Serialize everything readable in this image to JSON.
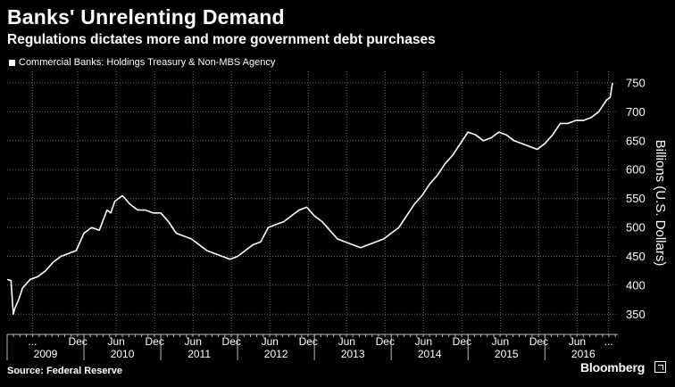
{
  "title": "Banks' Unrelenting Demand",
  "subtitle": "Regulations dictates more and more government debt purchases",
  "source": "Source: Federal Reserve",
  "brand": "Bloomberg",
  "colors": {
    "background": "#000000",
    "line": "#ffffff",
    "grid": "#6a6a6a"
  },
  "chart_data": {
    "type": "line",
    "legend": "top-left",
    "grid": true,
    "ylabel": "Billions (U.S. Dollars)",
    "ylim": [
      315,
      770
    ],
    "yticks": [
      350,
      400,
      450,
      500,
      550,
      600,
      650,
      700,
      750
    ],
    "xlim": [
      2009.0,
      2016.95
    ],
    "xticks": [
      {
        "x": 2009.33,
        "label": "..."
      },
      {
        "x": 2009.92,
        "label": "Dec"
      },
      {
        "x": 2010.42,
        "label": "Jun"
      },
      {
        "x": 2010.92,
        "label": "Dec"
      },
      {
        "x": 2011.42,
        "label": "Jun"
      },
      {
        "x": 2011.92,
        "label": "Dec"
      },
      {
        "x": 2012.42,
        "label": "Jun"
      },
      {
        "x": 2012.92,
        "label": "Dec"
      },
      {
        "x": 2013.42,
        "label": "Jun"
      },
      {
        "x": 2013.92,
        "label": "Dec"
      },
      {
        "x": 2014.42,
        "label": "Jun"
      },
      {
        "x": 2014.92,
        "label": "Dec"
      },
      {
        "x": 2015.42,
        "label": "Jun"
      },
      {
        "x": 2015.92,
        "label": "Dec"
      },
      {
        "x": 2016.42,
        "label": "Jun"
      },
      {
        "x": 2016.83,
        "label": "..."
      }
    ],
    "years": [
      {
        "x": 2009.5,
        "label": "2009"
      },
      {
        "x": 2010.5,
        "label": "2010"
      },
      {
        "x": 2011.5,
        "label": "2011"
      },
      {
        "x": 2012.5,
        "label": "2012"
      },
      {
        "x": 2013.5,
        "label": "2013"
      },
      {
        "x": 2014.5,
        "label": "2014"
      },
      {
        "x": 2015.5,
        "label": "2015"
      },
      {
        "x": 2016.5,
        "label": "2016"
      }
    ],
    "series": [
      {
        "name": "Commercial Banks: Holdings Treasury & Non-MBS Agency",
        "x": [
          2009.0,
          2009.05,
          2009.08,
          2009.1,
          2009.15,
          2009.2,
          2009.3,
          2009.4,
          2009.5,
          2009.6,
          2009.7,
          2009.8,
          2009.9,
          2010.0,
          2010.1,
          2010.2,
          2010.3,
          2010.35,
          2010.4,
          2010.5,
          2010.6,
          2010.7,
          2010.8,
          2010.9,
          2011.0,
          2011.1,
          2011.2,
          2011.3,
          2011.4,
          2011.5,
          2011.6,
          2011.7,
          2011.8,
          2011.9,
          2012.0,
          2012.1,
          2012.2,
          2012.3,
          2012.4,
          2012.5,
          2012.6,
          2012.7,
          2012.8,
          2012.9,
          2013.0,
          2013.1,
          2013.2,
          2013.3,
          2013.4,
          2013.5,
          2013.6,
          2013.7,
          2013.8,
          2013.9,
          2014.0,
          2014.1,
          2014.2,
          2014.3,
          2014.4,
          2014.5,
          2014.6,
          2014.7,
          2014.8,
          2014.9,
          2015.0,
          2015.1,
          2015.2,
          2015.3,
          2015.4,
          2015.5,
          2015.6,
          2015.7,
          2015.8,
          2015.9,
          2016.0,
          2016.1,
          2016.2,
          2016.3,
          2016.4,
          2016.5,
          2016.6,
          2016.7,
          2016.75,
          2016.8,
          2016.85,
          2016.88
        ],
        "values": [
          410,
          408,
          350,
          360,
          375,
          395,
          410,
          415,
          425,
          440,
          450,
          455,
          460,
          490,
          500,
          495,
          530,
          525,
          545,
          555,
          540,
          530,
          530,
          525,
          525,
          510,
          490,
          485,
          480,
          470,
          460,
          455,
          450,
          445,
          450,
          460,
          470,
          475,
          500,
          505,
          510,
          520,
          530,
          535,
          520,
          510,
          495,
          480,
          475,
          470,
          465,
          470,
          475,
          480,
          490,
          500,
          520,
          540,
          555,
          575,
          590,
          610,
          625,
          645,
          665,
          660,
          650,
          655,
          665,
          660,
          650,
          645,
          640,
          635,
          645,
          660,
          680,
          680,
          685,
          685,
          690,
          700,
          710,
          720,
          725,
          750
        ]
      }
    ]
  }
}
